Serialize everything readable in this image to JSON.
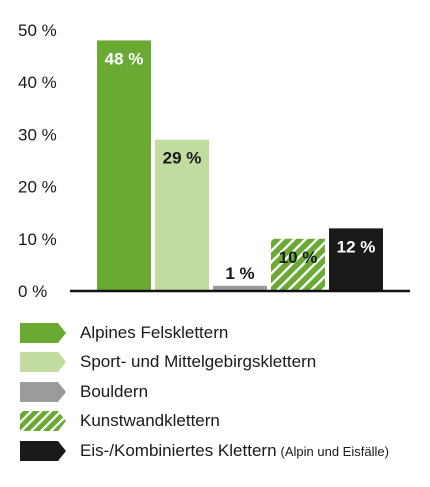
{
  "chart_data": {
    "type": "bar",
    "categories": [
      "Alpines Felsklettern",
      "Sport- und Mittelgebirgsklettern",
      "Bouldern",
      "Kunstwandklettern",
      "Eis-/Kombiniertes Klettern"
    ],
    "values": [
      48,
      29,
      1,
      10,
      12
    ],
    "data_labels": [
      "48 %",
      "29 %",
      "1 %",
      "10 %",
      "12 %"
    ],
    "ylim": [
      0,
      50
    ],
    "y_ticks": [
      "0 %",
      "10 %",
      "20 %",
      "30 %",
      "40 %",
      "50 %"
    ],
    "grid": false,
    "legend_position": "bottom",
    "colors": [
      "#6aaa33",
      "#c2dba0",
      "#9b9b9b",
      "#6aaa33",
      "#1a1a1a"
    ],
    "patterns": [
      "solid",
      "solid",
      "solid",
      "hatched",
      "solid"
    ],
    "label_colors": [
      "#ffffff",
      "#1a1a1a",
      "#1a1a1a",
      "#1a1a1a",
      "#ffffff"
    ]
  },
  "legend": [
    {
      "label": "Alpines Felsklettern",
      "note": ""
    },
    {
      "label": "Sport- und Mittelgebirgsklettern",
      "note": ""
    },
    {
      "label": "Bouldern",
      "note": ""
    },
    {
      "label": "Kunstwandklettern",
      "note": ""
    },
    {
      "label": "Eis-/Kombiniertes Klettern",
      "note": "(Alpin und Eisfälle)"
    }
  ]
}
